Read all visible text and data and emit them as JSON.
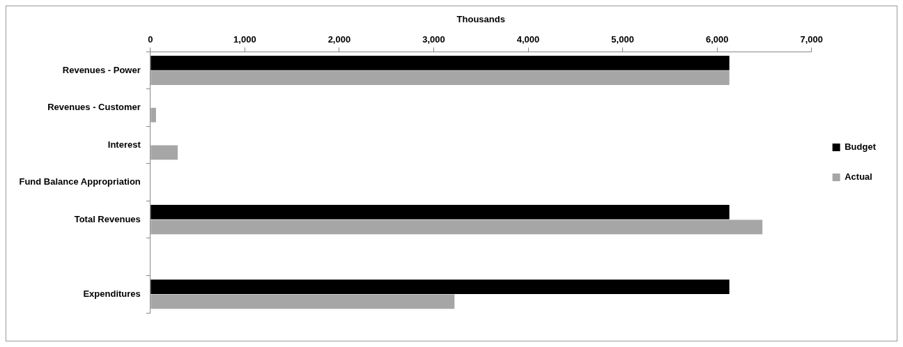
{
  "chart_data": {
    "type": "bar",
    "orientation": "horizontal",
    "xlabel": "Thousands",
    "categories": [
      "Revenues - Power",
      "Revenues - Customer",
      "Interest",
      "Fund Balance Appropriation",
      "Total Revenues",
      null,
      "Expenditures"
    ],
    "series": [
      {
        "name": "Budget",
        "color": "#000000",
        "values": [
          6130,
          0,
          0,
          0,
          6130,
          null,
          6130
        ]
      },
      {
        "name": "Actual",
        "color": "#a6a6a6",
        "values": [
          6130,
          60,
          290,
          0,
          6480,
          null,
          3220
        ]
      }
    ],
    "xlim": [
      0,
      7000
    ],
    "xticks": [
      {
        "value": 0,
        "label": "0"
      },
      {
        "value": 1000,
        "label": "1,000"
      },
      {
        "value": 2000,
        "label": "2,000"
      },
      {
        "value": 3000,
        "label": "3,000"
      },
      {
        "value": 4000,
        "label": "4,000"
      },
      {
        "value": 5000,
        "label": "5,000"
      },
      {
        "value": 6000,
        "label": "6,000"
      },
      {
        "value": 7000,
        "label": "7,000"
      }
    ],
    "grid": false,
    "legend": "right"
  }
}
